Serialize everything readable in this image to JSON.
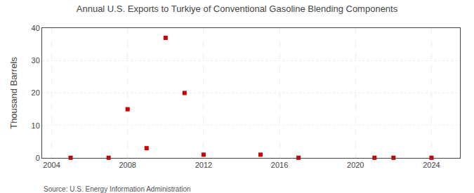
{
  "chart_data": {
    "type": "scatter",
    "title": "Annual U.S. Exports to Turkiye of Conventional Gasoline Blending Components",
    "y_label": "Thousand Barrels",
    "source": "Source: U.S. Energy Information Administration",
    "x": [
      2005,
      2007,
      2008,
      2009,
      2010,
      2011,
      2012,
      2015,
      2017,
      2021,
      2022,
      2024
    ],
    "values": [
      0.05,
      0.05,
      15.0,
      3.0,
      37.0,
      20.0,
      1.0,
      1.0,
      0.05,
      0.05,
      0.05,
      0.05
    ],
    "color": "#cc0000",
    "marker": "square",
    "xlim": [
      2003.5,
      2025.5
    ],
    "xticks": [
      2004,
      2008,
      2012,
      2016,
      2020,
      2024
    ],
    "ylim": [
      0,
      40
    ],
    "yticks": [
      0,
      10,
      20,
      30,
      40
    ],
    "grid": true
  }
}
